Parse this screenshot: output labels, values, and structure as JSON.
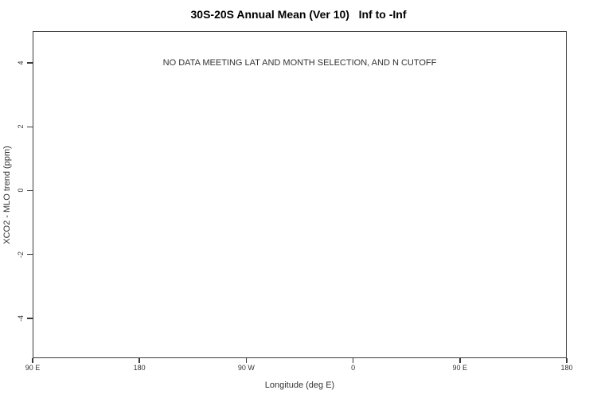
{
  "chart_data": {
    "type": "scatter",
    "title": "30S-20S Annual Mean (Ver 10)   Inf to -Inf",
    "xlabel": "Longitude (deg E)",
    "ylabel": "XCO2 - MLO trend (ppm)",
    "grid": false,
    "legend": null,
    "series": [],
    "x_axis": {
      "min": 90,
      "max": 540,
      "ticks": [
        {
          "value": 90,
          "label": "90 E"
        },
        {
          "value": 180,
          "label": "180"
        },
        {
          "value": 270,
          "label": "90 W"
        },
        {
          "value": 360,
          "label": "0"
        },
        {
          "value": 450,
          "label": "90 E"
        },
        {
          "value": 540,
          "label": "180"
        }
      ]
    },
    "y_axis": {
      "min": -5.25,
      "max": 5.0,
      "ticks": [
        {
          "value": 4,
          "label": "4"
        },
        {
          "value": 2,
          "label": "2"
        },
        {
          "value": 0,
          "label": "0"
        },
        {
          "value": -2,
          "label": "-2"
        },
        {
          "value": -4,
          "label": "-4"
        }
      ]
    },
    "annotation": {
      "text": "NO DATA MEETING LAT AND MONTH SELECTION, AND N CUTOFF",
      "y": 4
    }
  },
  "colors": {
    "axis": "#3a3a3a",
    "text": "#333333",
    "title": "#000000",
    "background": "#ffffff"
  }
}
